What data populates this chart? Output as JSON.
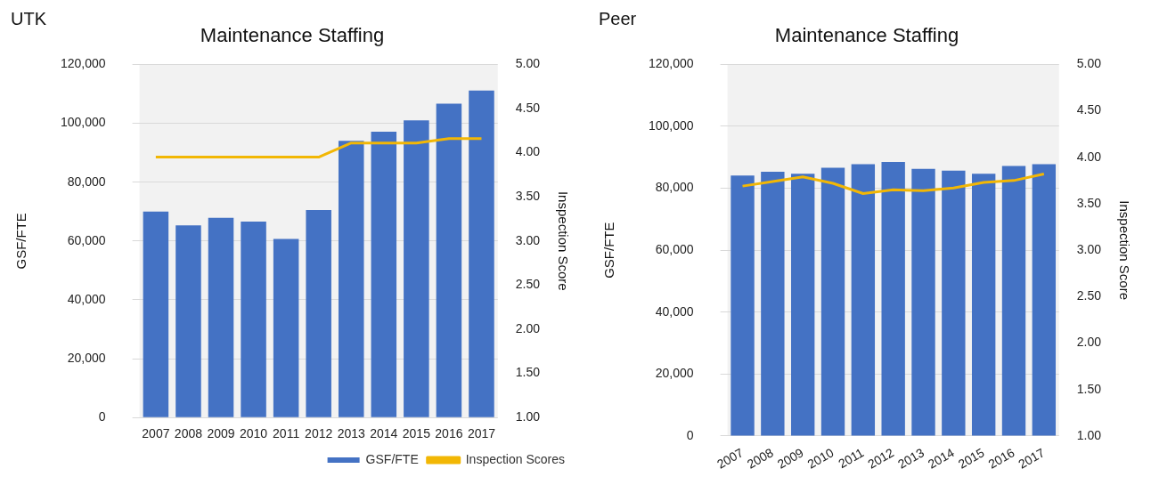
{
  "chart_data": [
    {
      "type": "bar",
      "title": "Maintenance Staffing",
      "annotations": [
        "UTK"
      ],
      "ylabel": "GSF/FTE",
      "y2label": "Inspection Score",
      "categories": [
        "2007",
        "2008",
        "2009",
        "2010",
        "2011",
        "2012",
        "2013",
        "2014",
        "2015",
        "2016",
        "2017"
      ],
      "series": [
        {
          "name": "GSF/FTE",
          "color": "#4472c4",
          "values": [
            70000,
            65300,
            67900,
            66600,
            60700,
            70500,
            94000,
            97100,
            101000,
            106700,
            111100
          ]
        },
        {
          "name": "Inspection Scores",
          "type": "line",
          "axis": "y2",
          "color": "#f2b705",
          "values": [
            3.95,
            3.95,
            3.95,
            3.95,
            3.95,
            3.95,
            4.11,
            4.11,
            4.11,
            4.16,
            4.16
          ]
        }
      ],
      "ylim": [
        0,
        120000
      ],
      "yticks": [
        {
          "value": 0,
          "label": "0"
        },
        {
          "value": 20000,
          "label": "20,000"
        },
        {
          "value": 40000,
          "label": "40,000"
        },
        {
          "value": 60000,
          "label": "60,000"
        },
        {
          "value": 80000,
          "label": "80,000"
        },
        {
          "value": 100000,
          "label": "100,000"
        },
        {
          "value": 120000,
          "label": "120,000"
        }
      ],
      "y2lim": [
        1,
        5
      ],
      "y2ticks": [
        {
          "value": 1,
          "label": "1.00"
        },
        {
          "value": 1.5,
          "label": "1.50"
        },
        {
          "value": 2,
          "label": "2.00"
        },
        {
          "value": 2.5,
          "label": "2.50"
        },
        {
          "value": 3,
          "label": "3.00"
        },
        {
          "value": 3.5,
          "label": "3.50"
        },
        {
          "value": 4,
          "label": "4.00"
        },
        {
          "value": 4.5,
          "label": "4.50"
        },
        {
          "value": 5,
          "label": "5.00"
        }
      ],
      "grid": "y",
      "legend": "bottom",
      "marker": "none"
    },
    {
      "type": "bar",
      "title": "Maintenance Staffing",
      "annotations": [
        "Peer"
      ],
      "ylabel": "GSF/FTE",
      "y2label": "Inspection Score",
      "categories": [
        "2007",
        "2008",
        "2009",
        "2010",
        "2011",
        "2012",
        "2013",
        "2014",
        "2015",
        "2016",
        "2017"
      ],
      "series": [
        {
          "color": "#4472c4",
          "values": [
            84100,
            85300,
            84700,
            86600,
            87800,
            88500,
            86300,
            85700,
            84700,
            87200,
            87800
          ]
        },
        {
          "type": "line",
          "axis": "y2",
          "color": "#f2b705",
          "values": [
            3.69,
            3.74,
            3.79,
            3.72,
            3.61,
            3.65,
            3.64,
            3.67,
            3.73,
            3.75,
            3.82
          ]
        }
      ],
      "ylim": [
        0,
        120000
      ],
      "yticks": [
        {
          "value": 0,
          "label": "0"
        },
        {
          "value": 20000,
          "label": "20,000"
        },
        {
          "value": 40000,
          "label": "40,000"
        },
        {
          "value": 60000,
          "label": "60,000"
        },
        {
          "value": 80000,
          "label": "80,000"
        },
        {
          "value": 100000,
          "label": "100,000"
        },
        {
          "value": 120000,
          "label": "120,000"
        }
      ],
      "y2lim": [
        1,
        5
      ],
      "y2ticks": [
        {
          "value": 1,
          "label": "1.00"
        },
        {
          "value": 1.5,
          "label": "1.50"
        },
        {
          "value": 2,
          "label": "2.00"
        },
        {
          "value": 2.5,
          "label": "2.50"
        },
        {
          "value": 3,
          "label": "3.00"
        },
        {
          "value": 3.5,
          "label": "3.50"
        },
        {
          "value": 4,
          "label": "4.00"
        },
        {
          "value": 4.5,
          "label": "4.50"
        },
        {
          "value": 5,
          "label": "5.00"
        }
      ],
      "grid": "y",
      "marker": "none"
    }
  ]
}
